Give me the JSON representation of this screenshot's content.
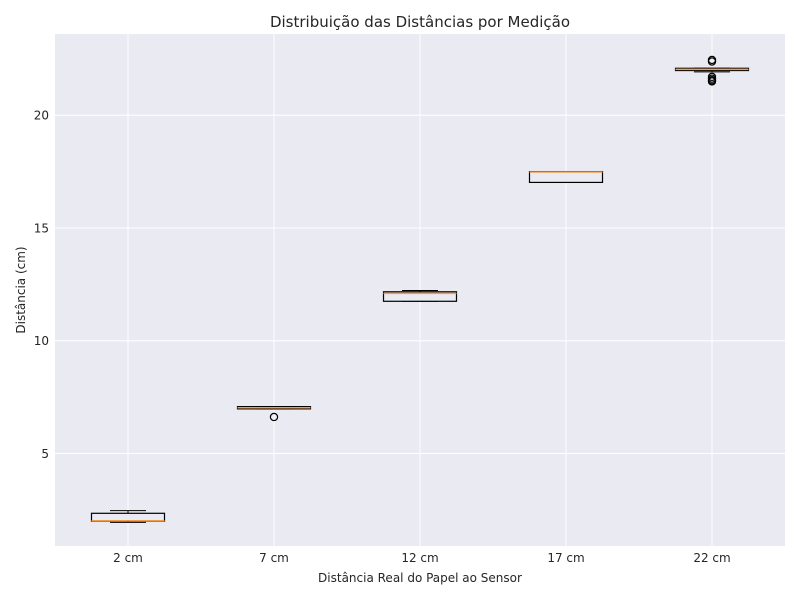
{
  "chart_data": {
    "type": "box",
    "title": "Distribuição das Distâncias por Medição",
    "xlabel": "Distância Real do Papel ao Sensor",
    "ylabel": "Distância (cm)",
    "ylim": [
      0.9,
      23.6
    ],
    "yticks": [
      5,
      10,
      15,
      20
    ],
    "grid": true,
    "colors": {
      "background": "#eaeaf2",
      "grid": "#ffffff",
      "box_edge": "#000000",
      "median": "#f39c4d",
      "box_fill": "#eaeaf2"
    },
    "categories": [
      "2 cm",
      "7 cm",
      "12 cm",
      "17 cm",
      "22 cm"
    ],
    "boxes": [
      {
        "label": "2 cm",
        "whisker_low": 1.95,
        "q1": 2.0,
        "median": 2.02,
        "q3": 2.35,
        "whisker_high": 2.47,
        "outliers": []
      },
      {
        "label": "7 cm",
        "whisker_low": 6.98,
        "q1": 6.98,
        "median": 7.03,
        "q3": 7.08,
        "whisker_high": 7.08,
        "outliers": [
          6.62
        ]
      },
      {
        "label": "12 cm",
        "whisker_low": 11.75,
        "q1": 11.75,
        "median": 12.1,
        "q3": 12.17,
        "whisker_high": 12.23,
        "outliers": []
      },
      {
        "label": "17 cm",
        "whisker_low": 17.02,
        "q1": 17.02,
        "median": 17.48,
        "q3": 17.5,
        "whisker_high": 17.5,
        "outliers": []
      },
      {
        "label": "22 cm",
        "whisker_low": 21.92,
        "q1": 21.98,
        "median": 22.03,
        "q3": 22.08,
        "whisker_high": 22.08,
        "outliers": [
          21.5,
          21.55,
          21.62,
          21.7,
          22.38,
          22.45
        ]
      }
    ]
  }
}
